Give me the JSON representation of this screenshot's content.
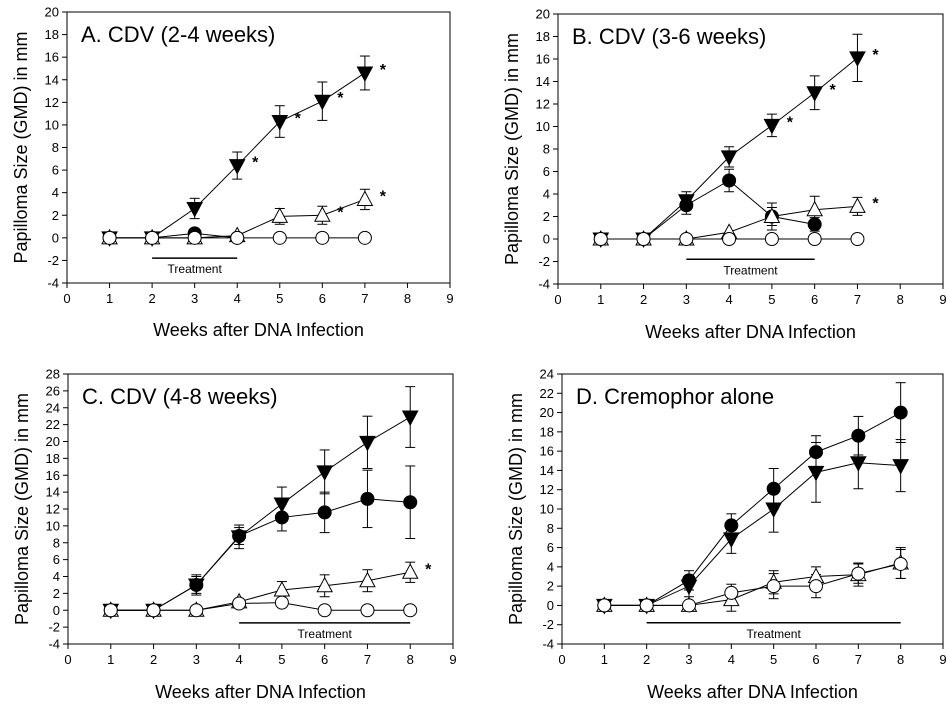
{
  "chart_data": [
    {
      "type": "line",
      "title": "A. CDV (2-4 weeks)",
      "xlabel": "Weeks after DNA Infection",
      "ylabel": "Papilloma Size (GMD) in mm",
      "xlim": [
        0,
        9
      ],
      "ylim": [
        -4,
        20
      ],
      "xticks": [
        "0",
        "1",
        "2",
        "3",
        "4",
        "5",
        "6",
        "7",
        "8",
        "9"
      ],
      "yticks": [
        "-4",
        "-2",
        "0",
        "2",
        "4",
        "6",
        "8",
        "10",
        "12",
        "14",
        "16",
        "18",
        "20"
      ],
      "annotation": "Treatment",
      "treatment_range": [
        2,
        4
      ],
      "treatment_y": -1.8,
      "series": [
        {
          "marker": "triangle-down-filled",
          "x": [
            1,
            2,
            3,
            4,
            5,
            6,
            7
          ],
          "y": [
            0,
            0,
            2.6,
            6.4,
            10.3,
            12.1,
            14.6
          ],
          "err": [
            0,
            0,
            0.9,
            1.2,
            1.4,
            1.7,
            1.5
          ],
          "stars": [
            0,
            0,
            0,
            1,
            1,
            1,
            1
          ]
        },
        {
          "marker": "circle-filled",
          "x": [
            1,
            2,
            3,
            4
          ],
          "y": [
            0,
            0,
            0.4,
            0
          ],
          "err": [
            0,
            0,
            0,
            0
          ],
          "stars": [
            0,
            0,
            0,
            0
          ]
        },
        {
          "marker": "triangle-up-open",
          "x": [
            1,
            2,
            3,
            4,
            5,
            6,
            7
          ],
          "y": [
            0,
            0,
            0,
            0.2,
            1.9,
            2.0,
            3.4
          ],
          "err": [
            0,
            0,
            0,
            0,
            0.7,
            0.8,
            0.9
          ],
          "stars": [
            0,
            0,
            0,
            0,
            0,
            1,
            1
          ]
        },
        {
          "marker": "circle-open",
          "x": [
            1,
            2,
            3,
            4,
            5,
            6,
            7
          ],
          "y": [
            0,
            0,
            0,
            0,
            0,
            0,
            0
          ],
          "err": [
            0,
            0,
            0,
            0,
            0,
            0,
            0
          ],
          "stars": [
            0,
            0,
            0,
            0,
            0,
            0,
            0
          ]
        }
      ]
    },
    {
      "type": "line",
      "title": "B. CDV (3-6 weeks)",
      "xlabel": "Weeks after DNA Infection",
      "ylabel": "Papilloma Size (GMD) in mm",
      "xlim": [
        0,
        9
      ],
      "ylim": [
        -4,
        20
      ],
      "xticks": [
        "0",
        "1",
        "2",
        "3",
        "4",
        "5",
        "6",
        "7",
        "8",
        "9"
      ],
      "yticks": [
        "-4",
        "-2",
        "0",
        "2",
        "4",
        "6",
        "8",
        "10",
        "12",
        "14",
        "16",
        "18",
        "20"
      ],
      "annotation": "Treatment",
      "treatment_range": [
        3,
        6
      ],
      "treatment_y": -1.8,
      "series": [
        {
          "marker": "triangle-down-filled",
          "x": [
            1,
            2,
            3,
            4,
            5,
            6,
            7
          ],
          "y": [
            0,
            0,
            3.4,
            7.3,
            10.1,
            13.0,
            16.1
          ],
          "err": [
            0,
            0,
            0.8,
            0.9,
            1.0,
            1.5,
            2.1
          ],
          "stars": [
            0,
            0,
            0,
            0,
            1,
            1,
            1
          ]
        },
        {
          "marker": "circle-filled",
          "x": [
            1,
            2,
            3,
            4,
            5,
            6
          ],
          "y": [
            0,
            0,
            3.0,
            5.2,
            2.0,
            1.3
          ],
          "err": [
            0,
            0,
            0.8,
            1.0,
            1.2,
            0.6
          ],
          "stars": [
            0,
            0,
            0,
            0,
            0,
            0
          ]
        },
        {
          "marker": "triangle-up-open",
          "x": [
            1,
            2,
            3,
            4,
            5,
            6,
            7
          ],
          "y": [
            0,
            0,
            0,
            0.6,
            2.0,
            2.6,
            2.9
          ],
          "err": [
            0,
            0,
            0,
            0,
            0.8,
            1.2,
            0.8
          ],
          "stars": [
            0,
            0,
            0,
            0,
            0,
            0,
            1
          ]
        },
        {
          "marker": "circle-open",
          "x": [
            1,
            2,
            3,
            4,
            5,
            6,
            7
          ],
          "y": [
            0,
            0,
            0,
            0,
            0,
            0,
            0
          ],
          "err": [
            0,
            0,
            0,
            0,
            0,
            0,
            0
          ],
          "stars": [
            0,
            0,
            0,
            0,
            0,
            0,
            0
          ]
        }
      ]
    },
    {
      "type": "line",
      "title": "C. CDV (4-8 weeks)",
      "xlabel": "Weeks after DNA Infection",
      "ylabel": "Papilloma Size (GMD) in mm",
      "xlim": [
        0,
        9
      ],
      "ylim": [
        -4,
        28
      ],
      "xticks": [
        "0",
        "1",
        "2",
        "3",
        "4",
        "5",
        "6",
        "7",
        "8",
        "9"
      ],
      "yticks": [
        "-4",
        "-2",
        "0",
        "2",
        "4",
        "6",
        "8",
        "10",
        "12",
        "14",
        "16",
        "18",
        "20",
        "22",
        "24",
        "26",
        "28"
      ],
      "annotation": "Treatment",
      "treatment_range": [
        4,
        8
      ],
      "treatment_y": -1.5,
      "series": [
        {
          "marker": "triangle-down-filled",
          "x": [
            1,
            2,
            3,
            4,
            5,
            6,
            7,
            8
          ],
          "y": [
            0,
            0,
            3.0,
            8.7,
            12.6,
            16.4,
            19.9,
            22.9
          ],
          "err": [
            0,
            0,
            1.2,
            1.4,
            2.0,
            2.6,
            3.1,
            3.6
          ],
          "stars": [
            0,
            0,
            0,
            0,
            0,
            0,
            0,
            0
          ]
        },
        {
          "marker": "circle-filled",
          "x": [
            1,
            2,
            3,
            4,
            5,
            6,
            7,
            8
          ],
          "y": [
            0,
            0,
            3.0,
            8.8,
            11.0,
            11.6,
            13.2,
            12.8
          ],
          "err": [
            0,
            0,
            1.0,
            1.0,
            1.6,
            2.4,
            3.4,
            4.3
          ],
          "stars": [
            0,
            0,
            0,
            0,
            0,
            0,
            0,
            0
          ]
        },
        {
          "marker": "triangle-up-open",
          "x": [
            1,
            2,
            3,
            4,
            5,
            6,
            7,
            8
          ],
          "y": [
            0,
            0,
            0,
            1.0,
            2.4,
            2.9,
            3.5,
            4.5
          ],
          "err": [
            0,
            0,
            0,
            0,
            1.0,
            1.3,
            1.3,
            1.2
          ],
          "stars": [
            0,
            0,
            0,
            0,
            0,
            0,
            0,
            1
          ]
        },
        {
          "marker": "circle-open",
          "x": [
            1,
            2,
            3,
            4,
            5,
            6,
            7,
            8
          ],
          "y": [
            0,
            0,
            0,
            0.8,
            0.9,
            0,
            0,
            0
          ],
          "err": [
            0,
            0,
            0,
            0,
            0,
            0,
            0,
            0
          ],
          "stars": [
            0,
            0,
            0,
            0,
            0,
            0,
            0,
            0
          ]
        }
      ]
    },
    {
      "type": "line",
      "title": "D. Cremophor alone",
      "xlabel": "Weeks after DNA Infection",
      "ylabel": "Papilloma Size (GMD) in mm",
      "xlim": [
        0,
        9
      ],
      "ylim": [
        -4,
        24
      ],
      "xticks": [
        "0",
        "1",
        "2",
        "3",
        "4",
        "5",
        "6",
        "7",
        "8",
        "9"
      ],
      "yticks": [
        "-4",
        "-2",
        "0",
        "2",
        "4",
        "6",
        "8",
        "10",
        "12",
        "14",
        "16",
        "18",
        "20",
        "22",
        "24"
      ],
      "annotation": "Treatment",
      "treatment_range": [
        2,
        8
      ],
      "treatment_y": -1.8,
      "series": [
        {
          "marker": "circle-filled",
          "x": [
            1,
            2,
            3,
            4,
            5,
            6,
            7,
            8
          ],
          "y": [
            0,
            0,
            2.6,
            8.3,
            12.1,
            15.9,
            17.6,
            20.0
          ],
          "err": [
            0,
            0,
            1.0,
            1.2,
            2.1,
            1.7,
            2.0,
            3.1
          ],
          "stars": [
            0,
            0,
            0,
            0,
            0,
            0,
            0,
            0
          ]
        },
        {
          "marker": "triangle-down-filled",
          "x": [
            1,
            2,
            3,
            4,
            5,
            6,
            7,
            8
          ],
          "y": [
            0,
            0,
            2.0,
            6.9,
            10.0,
            13.8,
            14.8,
            14.5
          ],
          "err": [
            0,
            0,
            1.1,
            1.5,
            2.4,
            3.1,
            2.7,
            2.7
          ],
          "stars": [
            0,
            0,
            0,
            0,
            0,
            0,
            0,
            0
          ]
        },
        {
          "marker": "triangle-up-open",
          "x": [
            1,
            2,
            3,
            4,
            5,
            6,
            7,
            8
          ],
          "y": [
            0,
            0,
            0,
            0.6,
            2.4,
            3.0,
            3.2,
            4.4
          ],
          "err": [
            0,
            0,
            0,
            1.2,
            1.2,
            1.0,
            1.2,
            1.6
          ],
          "stars": [
            0,
            0,
            0,
            0,
            0,
            0,
            0,
            0
          ]
        },
        {
          "marker": "circle-open",
          "x": [
            1,
            2,
            3,
            4,
            5,
            6,
            7,
            8
          ],
          "y": [
            0,
            0,
            0,
            1.3,
            2.0,
            2.0,
            3.3,
            4.3
          ],
          "err": [
            0,
            0,
            0,
            0.9,
            1.3,
            1.2,
            1.0,
            1.5
          ],
          "stars": [
            0,
            0,
            0,
            0,
            0,
            0,
            0,
            0
          ]
        }
      ]
    }
  ]
}
